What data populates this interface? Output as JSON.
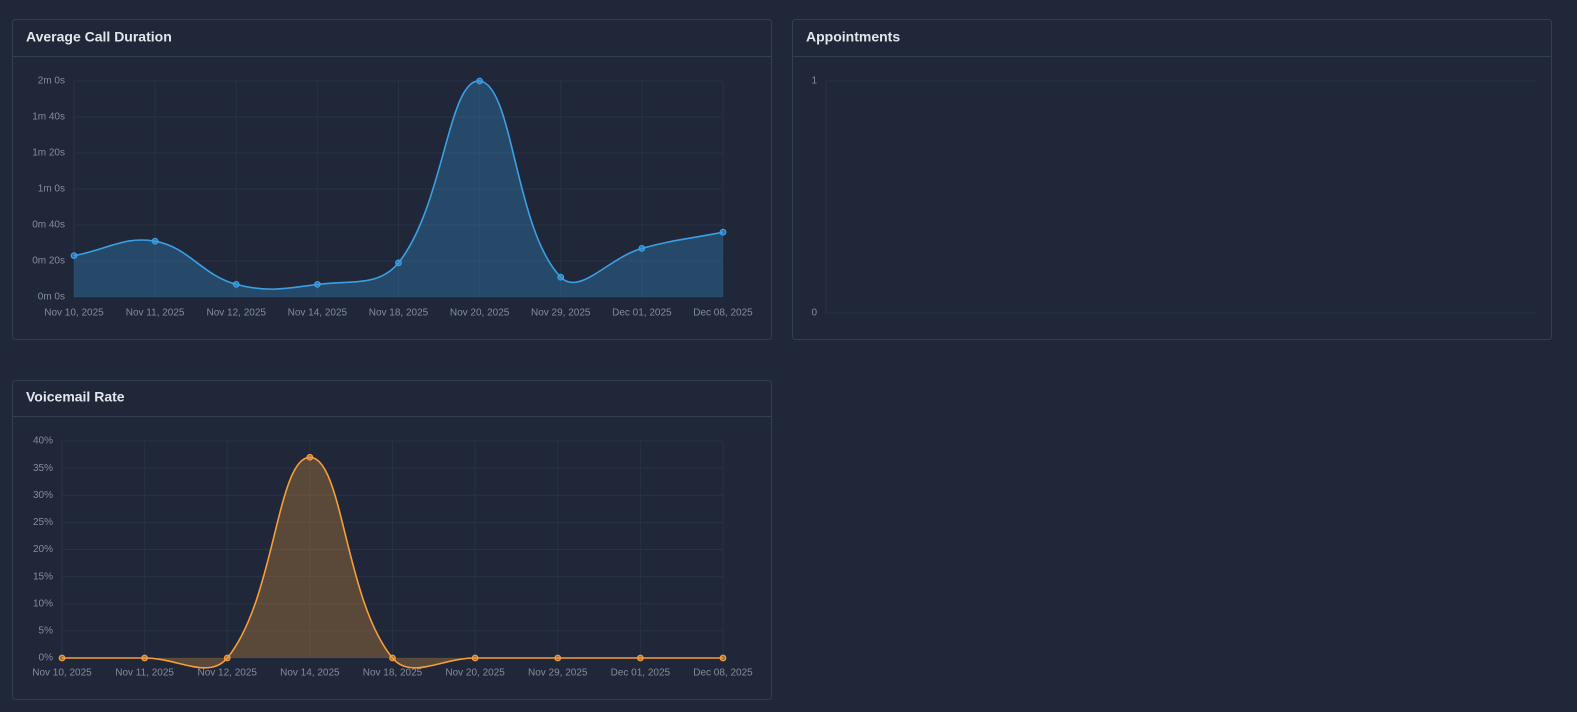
{
  "chart_data": [
    {
      "type": "line",
      "title": "Average Call Duration",
      "categories": [
        "Nov 10, 2025",
        "Nov 11, 2025",
        "Nov 12, 2025",
        "Nov 14, 2025",
        "Nov 18, 2025",
        "Nov 20, 2025",
        "Nov 29, 2025",
        "Dec 01, 2025",
        "Dec 08, 2025"
      ],
      "series": [
        {
          "color": "#3b9fe6",
          "values": [
            23,
            31,
            7,
            7,
            19,
            120,
            11,
            27,
            36
          ]
        }
      ],
      "area": true,
      "grid": true,
      "ylim": [
        0,
        120
      ],
      "yticks": [
        {
          "value": 0,
          "label": "0m 0s"
        },
        {
          "value": 20,
          "label": "0m 20s"
        },
        {
          "value": 40,
          "label": "0m 40s"
        },
        {
          "value": 60,
          "label": "1m 0s"
        },
        {
          "value": 80,
          "label": "1m 20s"
        },
        {
          "value": 100,
          "label": "1m 40s"
        },
        {
          "value": 120,
          "label": "2m 0s"
        }
      ]
    },
    {
      "type": "line",
      "title": "Appointments",
      "grid": true,
      "ylim": [
        0,
        1
      ],
      "yticks": [
        0,
        1
      ]
    },
    {
      "type": "line",
      "title": "Voicemail Rate",
      "categories": [
        "Nov 10, 2025",
        "Nov 11, 2025",
        "Nov 12, 2025",
        "Nov 14, 2025",
        "Nov 18, 2025",
        "Nov 20, 2025",
        "Nov 29, 2025",
        "Dec 01, 2025",
        "Dec 08, 2025"
      ],
      "series": [
        {
          "color": "#f59e3b",
          "values": [
            0,
            0,
            0,
            37,
            0,
            0,
            0,
            0,
            0
          ]
        }
      ],
      "area": true,
      "grid": true,
      "ylim": [
        0,
        40
      ],
      "yticks": [
        {
          "value": 0,
          "label": "0%"
        },
        {
          "value": 5,
          "label": "5%"
        },
        {
          "value": 10,
          "label": "10%"
        },
        {
          "value": 15,
          "label": "15%"
        },
        {
          "value": 20,
          "label": "20%"
        },
        {
          "value": 25,
          "label": "25%"
        },
        {
          "value": 30,
          "label": "30%"
        },
        {
          "value": 35,
          "label": "35%"
        },
        {
          "value": 40,
          "label": "40%"
        }
      ]
    }
  ]
}
